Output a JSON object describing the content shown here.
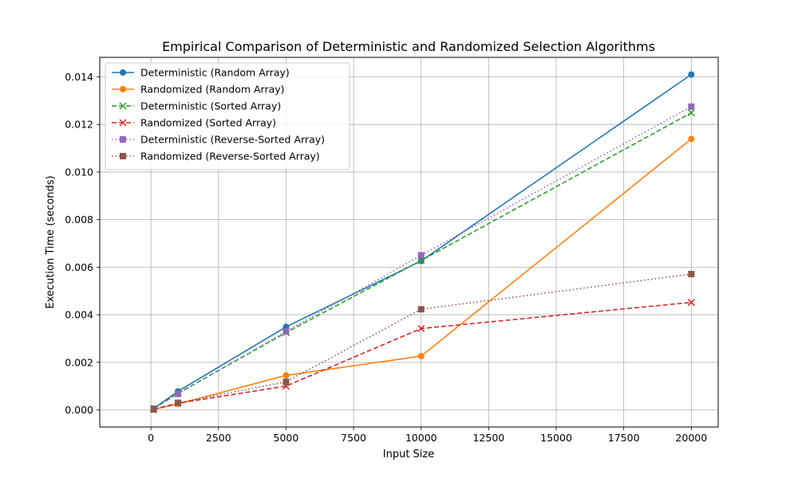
{
  "chart_data": {
    "type": "line",
    "title": "Empirical Comparison of Deterministic and Randomized Selection Algorithms",
    "xlabel": "Input Size",
    "ylabel": "Execution Time (seconds)",
    "x": [
      100,
      1000,
      5000,
      10000,
      20000
    ],
    "xlim": [
      -1895,
      20995
    ],
    "ylim": [
      -0.00072,
      0.01482
    ],
    "xticks": [
      0,
      2500,
      5000,
      7500,
      10000,
      12500,
      15000,
      17500,
      20000
    ],
    "xtick_labels": [
      "0",
      "2500",
      "5000",
      "7500",
      "10000",
      "12500",
      "15000",
      "17500",
      "20000"
    ],
    "yticks": [
      0,
      0.002,
      0.004,
      0.006,
      0.008,
      0.01,
      0.012,
      0.014
    ],
    "ytick_labels": [
      "0.000",
      "0.002",
      "0.004",
      "0.006",
      "0.008",
      "0.010",
      "0.012",
      "0.014"
    ],
    "grid": true,
    "legend_position": "top-left",
    "series": [
      {
        "name": "Deterministic (Random Array)",
        "color": "#1f77b4",
        "linestyle": "solid",
        "marker": "circle",
        "values": [
          6e-05,
          0.00078,
          0.00349,
          0.00626,
          0.0141
        ]
      },
      {
        "name": "Randomized (Random Array)",
        "color": "#ff7f0e",
        "linestyle": "solid",
        "marker": "circle",
        "values": [
          2e-05,
          0.00025,
          0.00145,
          0.00226,
          0.01139
        ]
      },
      {
        "name": "Deterministic (Sorted Array)",
        "color": "#2ca02c",
        "linestyle": "dashed",
        "marker": "x",
        "values": [
          5e-05,
          0.0007,
          0.00325,
          0.00628,
          0.01249
        ]
      },
      {
        "name": "Randomized (Sorted Array)",
        "color": "#d62728",
        "linestyle": "dashed",
        "marker": "x",
        "values": [
          2e-05,
          0.00028,
          0.001,
          0.00342,
          0.00452
        ]
      },
      {
        "name": "Deterministic (Reverse-Sorted Array)",
        "color": "#9467bd",
        "linestyle": "dotted",
        "marker": "square",
        "values": [
          5e-05,
          0.00067,
          0.0033,
          0.0065,
          0.01275
        ]
      },
      {
        "name": "Randomized (Reverse-Sorted Array)",
        "color": "#8c564b",
        "linestyle": "dotted",
        "marker": "square",
        "values": [
          2e-05,
          0.0003,
          0.00118,
          0.00423,
          0.00571
        ]
      }
    ]
  }
}
